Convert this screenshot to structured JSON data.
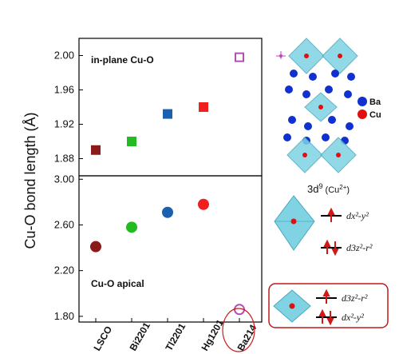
{
  "chart_data": [
    {
      "type": "scatter",
      "panel": "top",
      "annotation": "in-plane Cu-O",
      "categories": [
        "LSCO",
        "Bi2201",
        "Tl2201",
        "Hg1201",
        "Ba214"
      ],
      "values": [
        1.89,
        1.9,
        1.932,
        1.94,
        1.998
      ],
      "marker": "square",
      "filled": [
        true,
        true,
        true,
        true,
        false
      ],
      "colors": [
        "#8b1a1a",
        "#22bb22",
        "#1a5fb0",
        "#f02020",
        "#b050b0"
      ],
      "ylim": [
        1.86,
        2.02
      ],
      "yticks": [
        "1.88",
        "1.92",
        "1.96",
        "2.00"
      ]
    },
    {
      "type": "scatter",
      "panel": "bottom",
      "annotation": "Cu-O apical",
      "categories": [
        "LSCO",
        "Bi2201",
        "Tl2201",
        "Hg1201",
        "Ba214"
      ],
      "values": [
        2.41,
        2.58,
        2.71,
        2.78,
        1.86
      ],
      "marker": "circle",
      "filled": [
        true,
        true,
        true,
        true,
        false
      ],
      "colors": [
        "#8b1a1a",
        "#22bb22",
        "#1a5fb0",
        "#f02020",
        "#b050b0"
      ],
      "ylim": [
        1.75,
        3.03
      ],
      "yticks": [
        "1.80",
        "2.20",
        "2.60",
        "3.00"
      ]
    }
  ],
  "ylabel": "Cu-O bond length (Å)",
  "highlight_category": "Ba214",
  "legend_atoms": [
    {
      "label": "Ba",
      "color": "#1030d0"
    },
    {
      "label": "Cu",
      "color": "#e01010"
    }
  ],
  "config_title_main": "3d",
  "config_title_sup": "9",
  "config_title_ion": "(Cu",
  "config_title_ion_sup": "2+",
  "config_title_close": ")",
  "orbital_top": [
    "dx²-y²",
    "d3z²-r²"
  ],
  "orbital_bottom": [
    "d3z²-r²",
    "dx²-y²"
  ]
}
